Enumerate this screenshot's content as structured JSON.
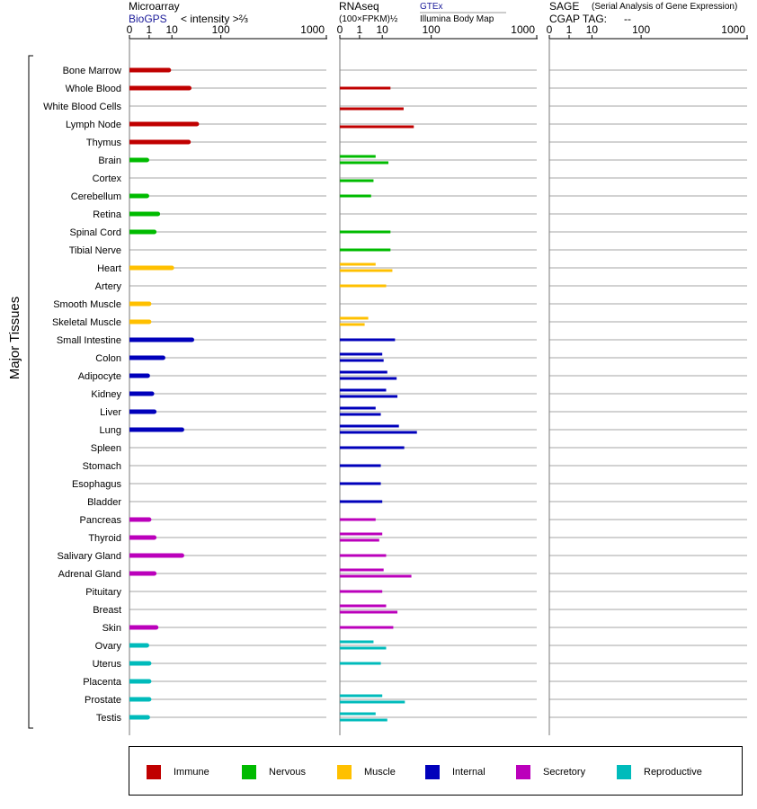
{
  "header": {
    "microarray_title": "Microarray",
    "biogps_label": "BioGPS",
    "intensity_label": "< intensity >⅔",
    "rnaseq_title": "RNAseq",
    "rnaseq_units": "(100×FPKM)½",
    "gtex_label": "GTEx",
    "illumina_label": "Illumina Body Map",
    "sage_title": "SAGE",
    "sage_subtitle": "(Serial Analysis of Gene Expression)",
    "cgap_label": "CGAP TAG:",
    "cgap_value": "--"
  },
  "side_label": "Major Tissues",
  "colors": {
    "Immune": "#c00000",
    "Nervous": "#00bb00",
    "Muscle": "#ffc000",
    "Internal": "#0000bb",
    "Secretory": "#bb00bb",
    "Reproductive": "#00bbbb"
  },
  "legend": [
    {
      "label": "Immune",
      "color": "#c00000"
    },
    {
      "label": "Nervous",
      "color": "#00bb00"
    },
    {
      "label": "Muscle",
      "color": "#ffc000"
    },
    {
      "label": "Internal",
      "color": "#0000bb"
    },
    {
      "label": "Secretory",
      "color": "#bb00bb"
    },
    {
      "label": "Reproductive",
      "color": "#00bbbb"
    }
  ],
  "chart_data": {
    "type": "bar",
    "scale": "power 1/3 (values labeled in linear units)",
    "xticks": [
      "0",
      "1",
      "10",
      "100",
      "1000"
    ],
    "xtick_values": [
      0,
      1,
      10,
      100,
      1000
    ],
    "xlim": [
      0,
      1000
    ],
    "panels": [
      {
        "name": "Microarray",
        "source": "BioGPS"
      },
      {
        "name": "RNAseq",
        "source": "GTEx / Illumina Body Map"
      },
      {
        "name": "SAGE",
        "source": "CGAP TAG"
      }
    ],
    "tissues": [
      {
        "name": "Bone Marrow",
        "group": "Immune",
        "microarray": 8,
        "gtex": null,
        "ibm": null
      },
      {
        "name": "Whole Blood",
        "group": "Immune",
        "microarray": 28,
        "gtex": 17,
        "ibm": null
      },
      {
        "name": "White Blood Cells",
        "group": "Immune",
        "microarray": null,
        "gtex": null,
        "ibm": 34
      },
      {
        "name": "Lymph Node",
        "group": "Immune",
        "microarray": 40,
        "gtex": null,
        "ibm": 53
      },
      {
        "name": "Thymus",
        "group": "Immune",
        "microarray": 27,
        "gtex": null,
        "ibm": null
      },
      {
        "name": "Brain",
        "group": "Nervous",
        "microarray": 0.7,
        "gtex": 6,
        "ibm": 15
      },
      {
        "name": "Cortex",
        "group": "Nervous",
        "microarray": null,
        "gtex": null,
        "ibm": 5
      },
      {
        "name": "Cerebellum",
        "group": "Nervous",
        "microarray": 0.7,
        "gtex": 4,
        "ibm": null
      },
      {
        "name": "Retina",
        "group": "Nervous",
        "microarray": 3,
        "gtex": null,
        "ibm": null
      },
      {
        "name": "Spinal Cord",
        "group": "Nervous",
        "microarray": 2,
        "gtex": 17,
        "ibm": null
      },
      {
        "name": "Tibial Nerve",
        "group": "Nervous",
        "microarray": null,
        "gtex": 17,
        "ibm": null
      },
      {
        "name": "Heart",
        "group": "Muscle",
        "microarray": 10,
        "gtex": 6,
        "ibm": 19
      },
      {
        "name": "Artery",
        "group": "Muscle",
        "microarray": null,
        "gtex": 13,
        "ibm": null
      },
      {
        "name": "Smooth Muscle",
        "group": "Muscle",
        "microarray": 1,
        "gtex": null,
        "ibm": null
      },
      {
        "name": "Skeletal Muscle",
        "group": "Muscle",
        "microarray": 1,
        "gtex": 3,
        "ibm": 2
      },
      {
        "name": "Small Intestine",
        "group": "Internal",
        "microarray": 32,
        "gtex": 22,
        "ibm": null
      },
      {
        "name": "Colon",
        "group": "Internal",
        "microarray": 5,
        "gtex": 10,
        "ibm": 11
      },
      {
        "name": "Adipocyte",
        "group": "Internal",
        "microarray": 0.8,
        "gtex": 14,
        "ibm": 24
      },
      {
        "name": "Kidney",
        "group": "Internal",
        "microarray": 1.5,
        "gtex": 13,
        "ibm": 25
      },
      {
        "name": "Liver",
        "group": "Internal",
        "microarray": 2,
        "gtex": 6,
        "ibm": 9
      },
      {
        "name": "Lung",
        "group": "Internal",
        "microarray": 19,
        "gtex": 27,
        "ibm": 60
      },
      {
        "name": "Spleen",
        "group": "Internal",
        "microarray": null,
        "gtex": 35,
        "ibm": null
      },
      {
        "name": "Stomach",
        "group": "Internal",
        "microarray": null,
        "gtex": 9,
        "ibm": null
      },
      {
        "name": "Esophagus",
        "group": "Internal",
        "microarray": null,
        "gtex": 9,
        "ibm": null
      },
      {
        "name": "Bladder",
        "group": "Internal",
        "microarray": null,
        "gtex": 10,
        "ibm": null
      },
      {
        "name": "Pancreas",
        "group": "Secretory",
        "microarray": 1,
        "gtex": 6,
        "ibm": null
      },
      {
        "name": "Thyroid",
        "group": "Secretory",
        "microarray": 2,
        "gtex": 10,
        "ibm": 8
      },
      {
        "name": "Salivary Gland",
        "group": "Secretory",
        "microarray": 19,
        "gtex": 13,
        "ibm": null
      },
      {
        "name": "Adrenal Gland",
        "group": "Secretory",
        "microarray": 2,
        "gtex": 11,
        "ibm": 48
      },
      {
        "name": "Pituitary",
        "group": "Secretory",
        "microarray": null,
        "gtex": 10,
        "ibm": null
      },
      {
        "name": "Breast",
        "group": "Secretory",
        "microarray": null,
        "gtex": 13,
        "ibm": 25
      },
      {
        "name": "Skin",
        "group": "Secretory",
        "microarray": 2.5,
        "gtex": 20,
        "ibm": null
      },
      {
        "name": "Ovary",
        "group": "Reproductive",
        "microarray": 0.7,
        "gtex": 5,
        "ibm": 13
      },
      {
        "name": "Uterus",
        "group": "Reproductive",
        "microarray": 1,
        "gtex": 9,
        "ibm": null
      },
      {
        "name": "Placenta",
        "group": "Reproductive",
        "microarray": 1,
        "gtex": null,
        "ibm": null
      },
      {
        "name": "Prostate",
        "group": "Reproductive",
        "microarray": 1,
        "gtex": 10,
        "ibm": 36
      },
      {
        "name": "Testis",
        "group": "Reproductive",
        "microarray": 0.8,
        "gtex": 6,
        "ibm": 14
      }
    ]
  }
}
